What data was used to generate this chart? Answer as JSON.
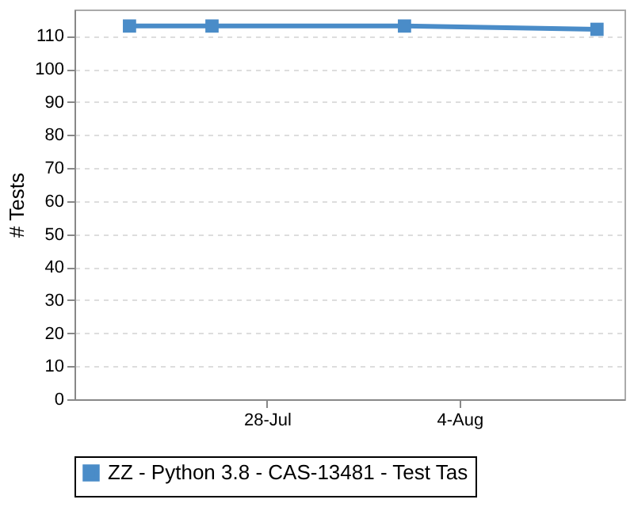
{
  "chart_data": {
    "type": "line",
    "ylabel": "# Tests",
    "x": [
      "--07-23",
      "--07-26",
      "--08-02",
      "--08-09"
    ],
    "series": [
      {
        "name": "ZZ - Python 3.8 - CAS-13481 - Test Tas",
        "color": "#4a8cc8",
        "values": [
          113,
          113,
          113,
          112
        ]
      }
    ],
    "xlim": [
      "--07-21",
      "--08-10"
    ],
    "xticks": [
      {
        "value": "--07-28",
        "label": "28-Jul"
      },
      {
        "value": "--08-04",
        "label": "4-Aug"
      }
    ],
    "ylim": [
      0,
      118
    ],
    "yticks": [
      0,
      10,
      20,
      30,
      40,
      50,
      60,
      70,
      80,
      90,
      100,
      110
    ],
    "grid": "y",
    "legend": "bottom",
    "marker": "square",
    "line_style": "solid"
  }
}
